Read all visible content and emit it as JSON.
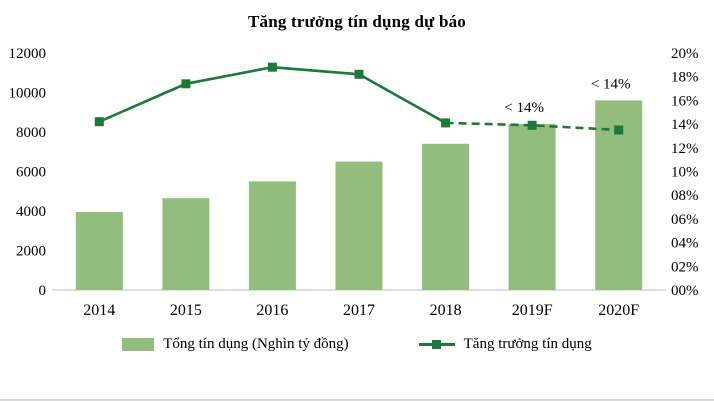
{
  "colors": {
    "bar": "#92BD7D",
    "line": "#1B7A38",
    "axis_line": "#BFBFBF",
    "text": "#000000",
    "frame": "#D9D9D9"
  },
  "chart_data": {
    "type": "bar+line combo",
    "title": "Tăng trưởng tín dụng dự báo",
    "categories": [
      "2014",
      "2015",
      "2016",
      "2017",
      "2018",
      "2019F",
      "2020F"
    ],
    "series": [
      {
        "name": "Tổng tín dụng (Nghìn tỷ đồng)",
        "type": "bar",
        "axis": "left",
        "unit": "Nghìn tỷ đồng",
        "values": [
          3950,
          4650,
          5500,
          6500,
          7400,
          8400,
          9600
        ]
      },
      {
        "name": "Tăng trưởng tín dụng",
        "type": "line",
        "axis": "right",
        "unit": "%",
        "values": [
          14.2,
          17.4,
          18.8,
          18.2,
          14.1,
          13.9,
          13.5
        ],
        "dashed_from_index": 4
      }
    ],
    "left_axis": {
      "min": 0,
      "max": 12000,
      "step": 2000,
      "ticks": [
        "0",
        "2000",
        "4000",
        "6000",
        "8000",
        "10000",
        "12000"
      ]
    },
    "right_axis": {
      "min": 0,
      "max": 20,
      "step": 2,
      "ticks": [
        "00%",
        "02%",
        "04%",
        "06%",
        "08%",
        "10%",
        "12%",
        "14%",
        "16%",
        "18%",
        "20%"
      ]
    },
    "annotations": [
      {
        "text": "< 14%",
        "category_index": 5
      },
      {
        "text": "< 14%",
        "category_index": 6
      }
    ],
    "grid": false,
    "legend_position": "bottom"
  }
}
